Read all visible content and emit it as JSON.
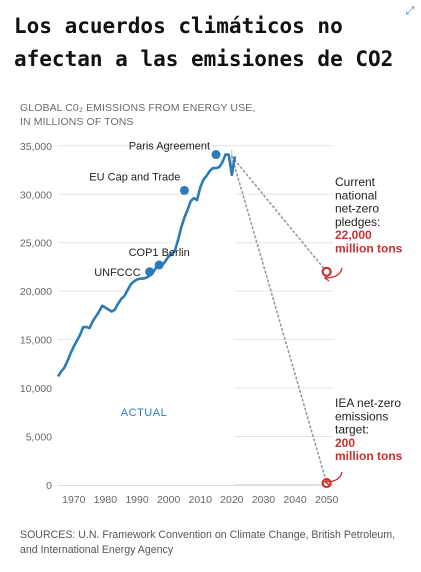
{
  "title_line1": "Los acuerdos climáticos no",
  "title_line2": "afectan a las emisiones de CO2",
  "corner_icon": "expand-icon",
  "sources": "SOURCES: U.N. Framework Convention on Climate Change, British Petroleum, and International Energy Agency",
  "colors": {
    "line": "#2b7bb9",
    "highlight": "#cc2f2f",
    "projection": "#999999",
    "text": "#333333",
    "muted": "#888888"
  },
  "chart_data": {
    "type": "line",
    "title": "",
    "ylabel_lines": [
      "GLOBAL C0₂ EMISSIONS FROM ENERGY USE,",
      "IN MILLIONS OF TONS"
    ],
    "xlabel": "",
    "xlim": [
      1965,
      2052
    ],
    "ylim": [
      0,
      35000
    ],
    "x_ticks": [
      1970,
      1980,
      1990,
      2000,
      2010,
      2020,
      2030,
      2040,
      2050
    ],
    "y_ticks": [
      0,
      5000,
      10000,
      15000,
      20000,
      25000,
      30000,
      35000
    ],
    "y_tick_labels": [
      "0",
      "5,000",
      "10,000",
      "15,000",
      "20,000",
      "25,000",
      "30,000",
      "35,000"
    ],
    "grid": "horizontal",
    "series": [
      {
        "x": [
          1965,
          1966,
          1967,
          1968,
          1969,
          1970,
          1971,
          1972,
          1973,
          1974,
          1975,
          1976,
          1977,
          1978,
          1979,
          1980,
          1981,
          1982,
          1983,
          1984,
          1985,
          1986,
          1987,
          1988,
          1989,
          1990,
          1991,
          1992,
          1993,
          1994,
          1995,
          1996,
          1997,
          1998,
          1999,
          2000,
          2001,
          2002,
          2003,
          2004,
          2005,
          2006,
          2007,
          2008,
          2009,
          2010,
          2011,
          2012,
          2013,
          2014,
          2015,
          2016,
          2017,
          2018,
          2019,
          2020,
          2021
        ],
        "values": [
          11200,
          11700,
          12100,
          12800,
          13600,
          14300,
          14900,
          15500,
          16300,
          16300,
          16200,
          16900,
          17400,
          17900,
          18500,
          18300,
          18100,
          17900,
          18100,
          18700,
          19200,
          19500,
          20100,
          20700,
          21000,
          21200,
          21300,
          21300,
          21400,
          21600,
          21900,
          22400,
          22600,
          22700,
          23100,
          23600,
          23800,
          24200,
          25300,
          26600,
          27600,
          28400,
          29300,
          29600,
          29400,
          30700,
          31500,
          31900,
          32400,
          32700,
          32700,
          32800,
          33300,
          34100,
          34100,
          32000,
          33900
        ]
      }
    ],
    "milestones": [
      {
        "label": "UNFCCC",
        "x": 1994,
        "y": 22000
      },
      {
        "label": "COP1 Berlin",
        "x": 1997,
        "y": 22700
      },
      {
        "label": "EU Cap and Trade",
        "x": 2005,
        "y": 30400
      },
      {
        "label": "Paris Agreement",
        "x": 2015,
        "y": 34100
      }
    ],
    "actual_label": "ACTUAL",
    "divider_x": 2020,
    "projections": [
      {
        "from_x": 2020,
        "from_y": 33900,
        "x": 2050,
        "y": 22000,
        "label_lines": [
          "Current",
          "national",
          "net-zero",
          "pledges:"
        ],
        "value_lines": [
          "22,000",
          "million tons"
        ]
      },
      {
        "from_x": 2020,
        "from_y": 33900,
        "x": 2050,
        "y": 200,
        "label_lines": [
          "IEA net-zero",
          "emissions",
          "target:"
        ],
        "value_lines": [
          "200",
          "million tons"
        ]
      }
    ]
  }
}
